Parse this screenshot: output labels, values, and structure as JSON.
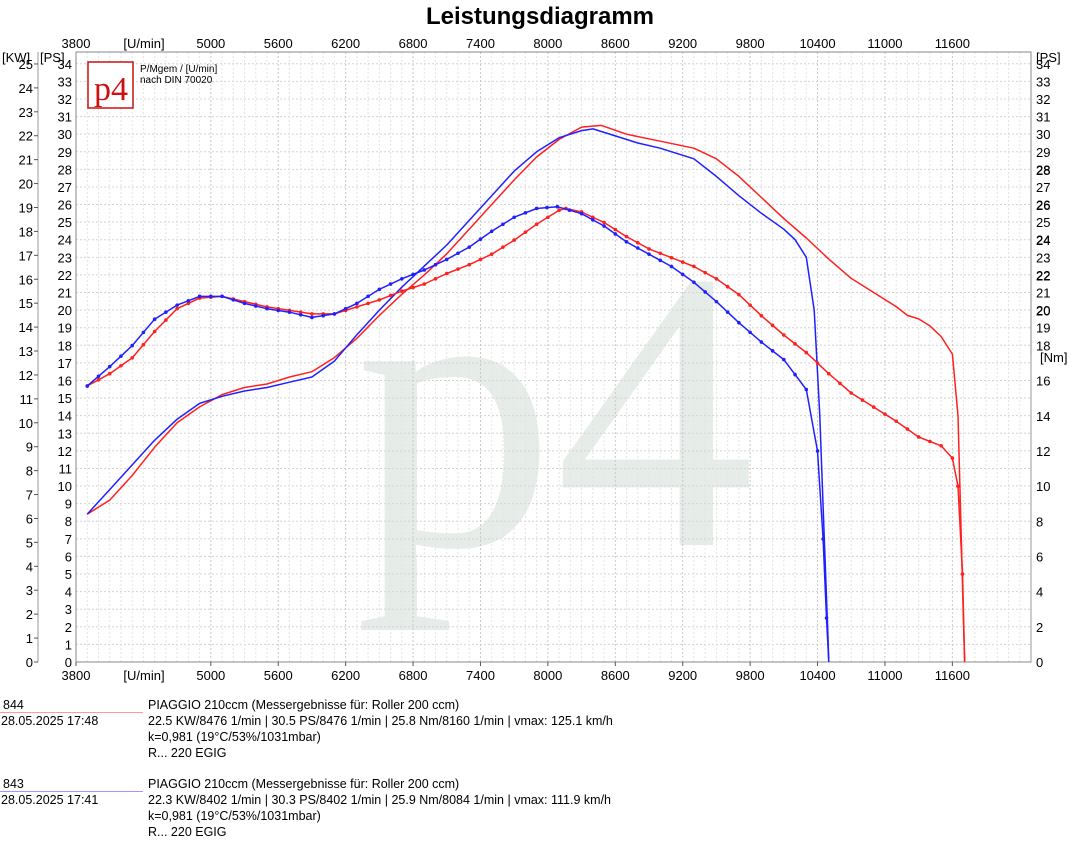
{
  "chart_data": {
    "type": "line",
    "title": "Leistungsdiagramm",
    "x_axis": {
      "label": "[U/min]",
      "range": [
        3800,
        12300
      ],
      "ticks": [
        3800,
        5000,
        5600,
        6200,
        6800,
        7400,
        8000,
        8600,
        9200,
        9800,
        10400,
        11000,
        11600
      ]
    },
    "y_axis_kw": {
      "label": "[KW]",
      "range": [
        0,
        25.5
      ],
      "ticks": [
        0,
        1,
        2,
        3,
        4,
        5,
        6,
        7,
        8,
        9,
        10,
        11,
        12,
        13,
        14,
        15,
        16,
        17,
        18,
        19,
        20,
        21,
        22,
        23,
        24,
        25
      ]
    },
    "y_axis_ps": {
      "label": "[PS]",
      "range": [
        0,
        34.67
      ],
      "ticks": [
        0,
        1,
        2,
        3,
        4,
        5,
        6,
        7,
        8,
        9,
        10,
        11,
        12,
        13,
        14,
        15,
        16,
        17,
        18,
        19,
        20,
        21,
        22,
        23,
        24,
        25,
        26,
        27,
        28,
        29,
        30,
        31,
        32,
        33,
        34
      ]
    },
    "y_axis_nm": {
      "label": "[Nm]",
      "range": [
        0,
        34.7
      ],
      "ticks": [
        2,
        4,
        6,
        8,
        10,
        12,
        14,
        16,
        18,
        20,
        22,
        24,
        26,
        28
      ]
    },
    "info_line1": "P/Mgem / [U/min]",
    "info_line2": "nach DIN 70020",
    "logo_text": "p4",
    "watermark": "p4",
    "series": [
      {
        "name": "844",
        "color": "#ff2020",
        "quantity": "power",
        "unit": "PS",
        "x": [
          3900,
          4100,
          4300,
          4500,
          4700,
          4900,
          5100,
          5300,
          5500,
          5700,
          5900,
          6100,
          6300,
          6500,
          6700,
          6900,
          7100,
          7300,
          7500,
          7700,
          7900,
          8100,
          8300,
          8476,
          8700,
          9000,
          9300,
          9500,
          9700,
          9900,
          10100,
          10300,
          10500,
          10700,
          10900,
          11100,
          11200,
          11300,
          11400,
          11500,
          11600,
          11650,
          11680,
          11700,
          11710
        ],
        "y": [
          8.4,
          9.2,
          10.6,
          12.2,
          13.6,
          14.5,
          15.2,
          15.6,
          15.8,
          16.2,
          16.5,
          17.3,
          18.4,
          19.7,
          20.9,
          22.0,
          23.2,
          24.6,
          26.0,
          27.4,
          28.7,
          29.7,
          30.4,
          30.5,
          30.0,
          29.6,
          29.2,
          28.6,
          27.6,
          26.4,
          25.2,
          24.1,
          22.9,
          21.8,
          21.0,
          20.2,
          19.7,
          19.5,
          19.1,
          18.5,
          17.5,
          14.0,
          7.0,
          2.0,
          0
        ]
      },
      {
        "name": "843",
        "color": "#2020ff",
        "quantity": "power",
        "unit": "PS",
        "x": [
          3900,
          4100,
          4300,
          4500,
          4700,
          4900,
          5100,
          5300,
          5500,
          5700,
          5900,
          6100,
          6300,
          6500,
          6700,
          6900,
          7100,
          7300,
          7500,
          7700,
          7900,
          8100,
          8300,
          8402,
          8600,
          8800,
          9000,
          9300,
          9500,
          9700,
          9900,
          10100,
          10200,
          10300,
          10370,
          10420,
          10460,
          10490,
          10500
        ],
        "y": [
          8.4,
          9.8,
          11.2,
          12.6,
          13.8,
          14.7,
          15.1,
          15.4,
          15.6,
          15.9,
          16.2,
          17.1,
          18.6,
          20.0,
          21.3,
          22.5,
          23.7,
          25.1,
          26.5,
          27.9,
          29.0,
          29.8,
          30.2,
          30.3,
          29.9,
          29.5,
          29.2,
          28.6,
          27.6,
          26.5,
          25.5,
          24.6,
          24.0,
          23.0,
          20.0,
          14.0,
          7.0,
          2.0,
          0
        ]
      },
      {
        "name": "844",
        "color": "#ff2020",
        "quantity": "torque",
        "unit": "Nm",
        "x": [
          3900,
          4100,
          4300,
          4500,
          4700,
          4900,
          5100,
          5300,
          5500,
          5700,
          5900,
          6100,
          6300,
          6500,
          6700,
          6900,
          7100,
          7300,
          7500,
          7700,
          7900,
          8100,
          8160,
          8300,
          8500,
          8700,
          8900,
          9100,
          9300,
          9500,
          9700,
          9900,
          10100,
          10300,
          10500,
          10700,
          10900,
          11100,
          11300,
          11500,
          11600,
          11650,
          11690,
          11710
        ],
        "y": [
          15.7,
          16.4,
          17.3,
          18.8,
          20.1,
          20.7,
          20.8,
          20.5,
          20.2,
          20.0,
          19.8,
          19.8,
          20.2,
          20.6,
          21.1,
          21.5,
          22.1,
          22.6,
          23.2,
          24.0,
          24.9,
          25.7,
          25.8,
          25.6,
          25.0,
          24.2,
          23.5,
          23.0,
          22.5,
          21.8,
          20.9,
          19.7,
          18.6,
          17.6,
          16.4,
          15.3,
          14.5,
          13.7,
          12.8,
          12.3,
          11.6,
          10.0,
          5.0,
          0
        ]
      },
      {
        "name": "843",
        "color": "#2020ff",
        "quantity": "torque",
        "unit": "Nm",
        "x": [
          3900,
          4100,
          4300,
          4500,
          4700,
          4900,
          5100,
          5300,
          5500,
          5700,
          5900,
          6100,
          6300,
          6500,
          6700,
          6900,
          7100,
          7300,
          7500,
          7700,
          7900,
          8084,
          8300,
          8500,
          8700,
          8900,
          9100,
          9300,
          9500,
          9700,
          9900,
          10100,
          10300,
          10400,
          10450,
          10480,
          10500
        ],
        "y": [
          15.7,
          16.8,
          18.0,
          19.5,
          20.3,
          20.8,
          20.8,
          20.4,
          20.1,
          19.9,
          19.6,
          19.8,
          20.4,
          21.2,
          21.8,
          22.3,
          22.9,
          23.6,
          24.5,
          25.3,
          25.8,
          25.9,
          25.5,
          24.8,
          23.9,
          23.2,
          22.5,
          21.6,
          20.5,
          19.3,
          18.2,
          17.2,
          15.5,
          12.0,
          7.0,
          2.5,
          0
        ]
      }
    ]
  },
  "legend": [
    {
      "id": "844",
      "color": "#ff2020",
      "datetime": "28.05.2025  17:48",
      "title": "PIAGGIO 210ccm (Messergebnisse für: Roller 200 ccm)",
      "stats": "22.5 KW/8476 1/min  |  30.5 PS/8476 1/min  |  25.8 Nm/8160 1/min | vmax: 125.1 km/h",
      "k": "k=0,981 (19°C/53%/1031mbar)",
      "note": "R... 220 EGIG"
    },
    {
      "id": "843",
      "color": "#2020ff",
      "datetime": "28.05.2025  17:41",
      "title": "PIAGGIO 210ccm (Messergebnisse für: Roller 200 ccm)",
      "stats": "22.3 KW/8402 1/min  |  30.3 PS/8402 1/min  |  25.9 Nm/8084 1/min | vmax: 111.9 km/h",
      "k": "k=0,981 (19°C/53%/1031mbar)",
      "note": "R... 220 EGIG"
    }
  ]
}
